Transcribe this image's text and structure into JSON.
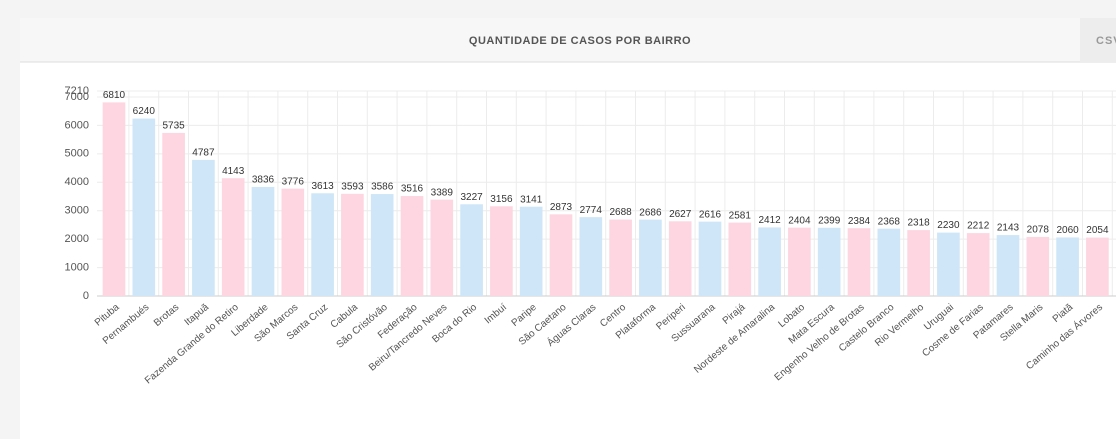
{
  "csv_button": "CSV",
  "chart_data": {
    "type": "bar",
    "title": "QUANTIDADE DE CASOS POR BAIRRO",
    "categories": [
      "Pituba",
      "Pernambués",
      "Brotas",
      "Itapuã",
      "Fazenda Grande do Retiro",
      "Liberdade",
      "São Marcos",
      "Santa Cruz",
      "Cabula",
      "São Cristóvão",
      "Federação",
      "Beiru/Tancredo Neves",
      "Boca do Rio",
      "Imbuí",
      "Paripe",
      "São Caetano",
      "Águas Claras",
      "Centro",
      "Plataforma",
      "Periperi",
      "Sussuarana",
      "Pirajá",
      "Nordeste de Amaralina",
      "Lobato",
      "Mata Escura",
      "Engenho Velho de Brotas",
      "Castelo Branco",
      "Rio Vermelho",
      "Uruguai",
      "Cosme de Farias",
      "Patamares",
      "Stella Maris",
      "Piatã",
      "Caminho das Árvores"
    ],
    "values": [
      6810,
      6240,
      5735,
      4787,
      4143,
      3836,
      3776,
      3613,
      3593,
      3586,
      3516,
      3389,
      3227,
      3156,
      3141,
      2873,
      2774,
      2688,
      2686,
      2627,
      2616,
      2581,
      2412,
      2404,
      2399,
      2384,
      2368,
      2318,
      2230,
      2212,
      2143,
      2078,
      2060,
      2054
    ],
    "colors": [
      "#fdd6e1",
      "#cfe6f8",
      "#fdd6e1",
      "#cfe6f8",
      "#fdd6e1",
      "#cfe6f8",
      "#fdd6e1",
      "#cfe6f8",
      "#fdd6e1",
      "#cfe6f8",
      "#fdd6e1",
      "#fdd6e1",
      "#cfe6f8",
      "#fdd6e1",
      "#cfe6f8",
      "#fdd6e1",
      "#cfe6f8",
      "#fdd6e1",
      "#cfe6f8",
      "#fdd6e1",
      "#cfe6f8",
      "#fdd6e1",
      "#cfe6f8",
      "#fdd6e1",
      "#cfe6f8",
      "#fdd6e1",
      "#cfe6f8",
      "#fdd6e1",
      "#cfe6f8",
      "#fdd6e1",
      "#cfe6f8",
      "#fdd6e1",
      "#cfe6f8",
      "#fdd6e1"
    ],
    "ylim": [
      0,
      7210
    ],
    "yticks": [
      0,
      1000,
      2000,
      3000,
      4000,
      5000,
      6000,
      7000,
      7210
    ],
    "grid": true
  }
}
